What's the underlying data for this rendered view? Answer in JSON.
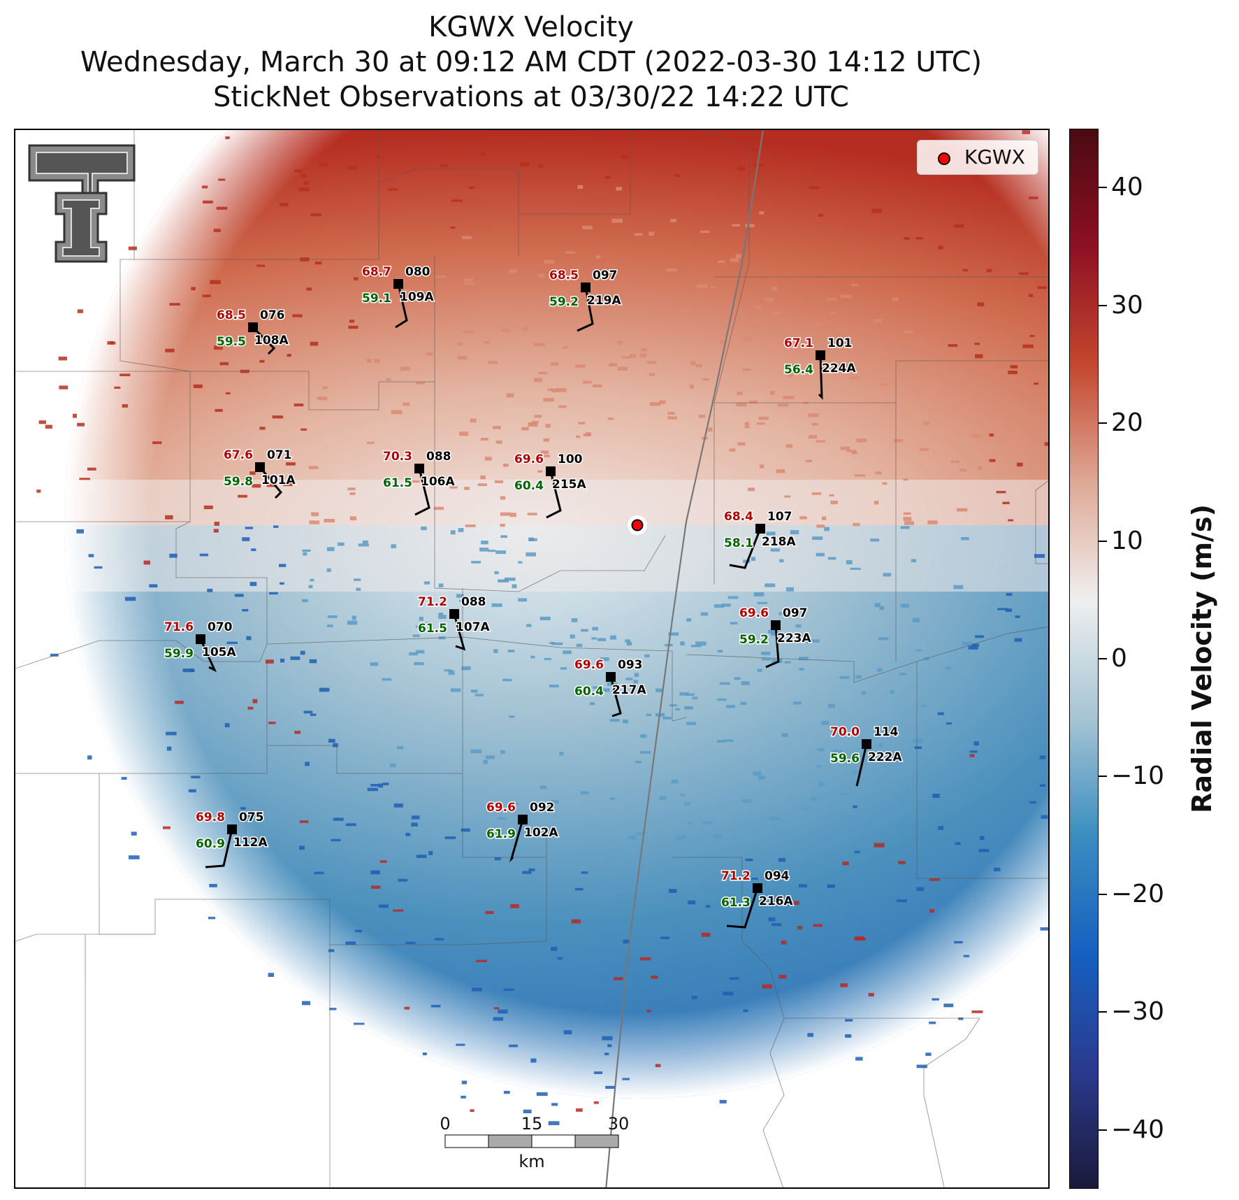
{
  "title": {
    "line1": "KGWX Velocity",
    "line2": "Wednesday, March 30 at 09:12 AM CDT (2022-03-30 14:12 UTC)",
    "line3": "StickNet Observations at 03/30/22 14:22 UTC"
  },
  "legend": {
    "label": "KGWX",
    "marker_color": "#ff0000"
  },
  "colorbar": {
    "label": "Radial Velocity (m/s)",
    "range": [
      -45,
      45
    ],
    "ticks": [
      "40",
      "30",
      "20",
      "10",
      "0",
      "−10",
      "−20",
      "−30",
      "−40"
    ],
    "tick_values": [
      40,
      30,
      20,
      10,
      0,
      -10,
      -20,
      -30,
      -40
    ],
    "colors": [
      "#1a1a3a",
      "#2b3a8f",
      "#1560c0",
      "#3a8ec0",
      "#a6c4d4",
      "#efefef",
      "#dfa896",
      "#c4472e",
      "#8e1024",
      "#4a0a12"
    ]
  },
  "scale_bar": {
    "unit": "km",
    "labels": [
      "0",
      "15",
      "30"
    ]
  },
  "logo": {
    "name": "Texas Tech Double T"
  },
  "stations": [
    {
      "id": "109A",
      "temp": "68.7",
      "dew": "59.1",
      "pres": "080"
    },
    {
      "id": "219A",
      "temp": "68.5",
      "dew": "59.2",
      "pres": "097"
    },
    {
      "id": "108A",
      "temp": "68.5",
      "dew": "59.5",
      "pres": "076"
    },
    {
      "id": "224A",
      "temp": "67.1",
      "dew": "56.4",
      "pres": "101"
    },
    {
      "id": "101A",
      "temp": "67.6",
      "dew": "59.8",
      "pres": "071"
    },
    {
      "id": "106A",
      "temp": "70.3",
      "dew": "61.5",
      "pres": "088"
    },
    {
      "id": "215A",
      "temp": "69.6",
      "dew": "60.4",
      "pres": "100"
    },
    {
      "id": "218A",
      "temp": "68.4",
      "dew": "58.1",
      "pres": "107"
    },
    {
      "id": "107A",
      "temp": "71.2",
      "dew": "61.5",
      "pres": "088"
    },
    {
      "id": "105A",
      "temp": "71.6",
      "dew": "59.9",
      "pres": "070"
    },
    {
      "id": "223A",
      "temp": "69.6",
      "dew": "59.2",
      "pres": "097"
    },
    {
      "id": "217A",
      "temp": "69.6",
      "dew": "60.4",
      "pres": "093"
    },
    {
      "id": "222A",
      "temp": "70.0",
      "dew": "59.6",
      "pres": "114"
    },
    {
      "id": "102A",
      "temp": "69.6",
      "dew": "61.9",
      "pres": "092"
    },
    {
      "id": "112A",
      "temp": "69.8",
      "dew": "60.9",
      "pres": "075"
    },
    {
      "id": "216A",
      "temp": "71.2",
      "dew": "61.3",
      "pres": "094"
    }
  ]
}
